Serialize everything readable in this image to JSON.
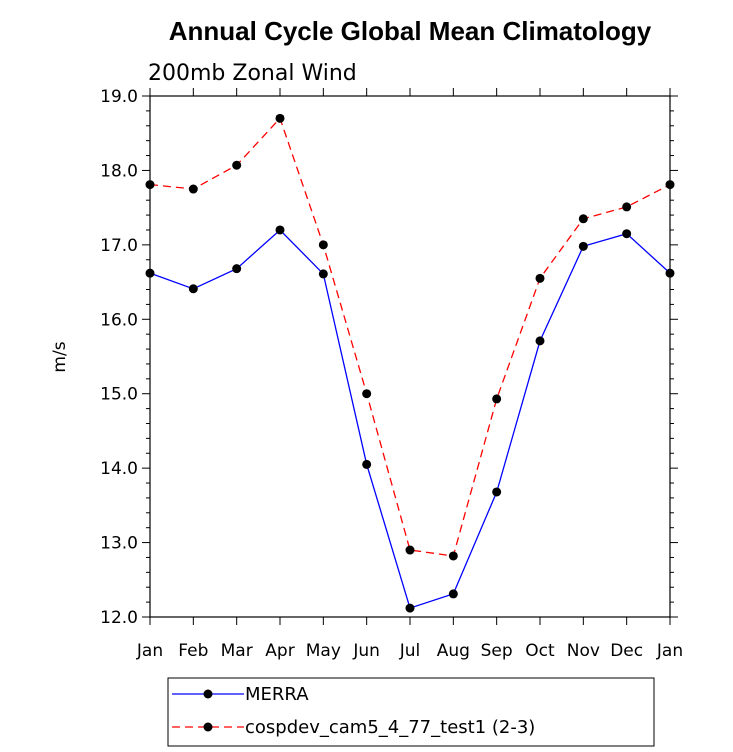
{
  "chart_data": {
    "type": "line",
    "title": "Annual Cycle Global Mean Climatology",
    "subtitle": "200mb Zonal Wind",
    "xlabel": "",
    "ylabel": "m/s",
    "categories": [
      "Jan",
      "Feb",
      "Mar",
      "Apr",
      "May",
      "Jun",
      "Jul",
      "Aug",
      "Sep",
      "Oct",
      "Nov",
      "Dec",
      "Jan"
    ],
    "yticks": [
      "12.0",
      "13.0",
      "14.0",
      "15.0",
      "16.0",
      "17.0",
      "18.0",
      "19.0"
    ],
    "ylim": [
      12.0,
      19.0
    ],
    "grid": false,
    "legend_position": "bottom",
    "series": [
      {
        "name": "MERRA",
        "color": "#0000ff",
        "style": "solid",
        "values": [
          16.62,
          16.41,
          16.68,
          17.2,
          16.61,
          14.05,
          12.12,
          12.31,
          13.68,
          15.71,
          16.98,
          17.15,
          16.62
        ]
      },
      {
        "name": "cospdev_cam5_4_77_test1 (2-3)",
        "color": "#ff0000",
        "style": "dashed",
        "values": [
          17.81,
          17.75,
          18.07,
          18.7,
          17.0,
          15.0,
          12.9,
          12.82,
          14.93,
          16.55,
          17.35,
          17.51,
          17.81
        ]
      }
    ]
  }
}
